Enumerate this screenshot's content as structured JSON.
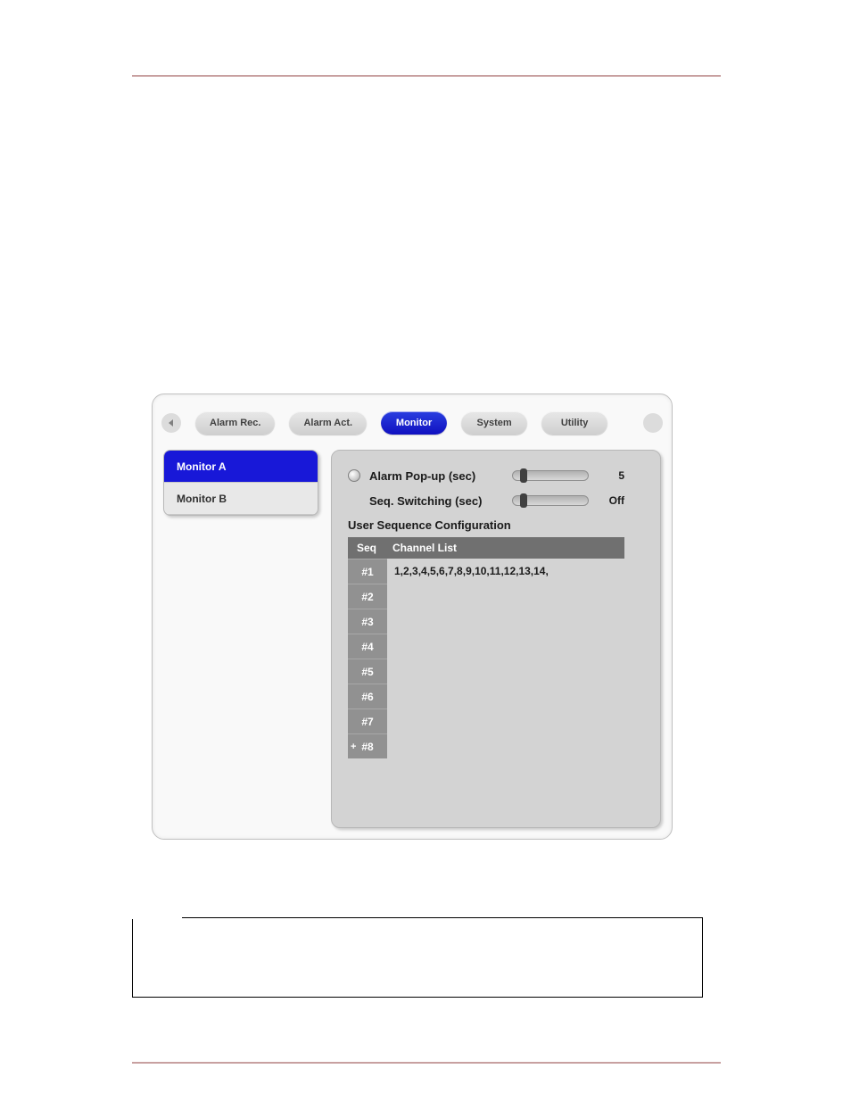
{
  "colors": {
    "rule": "#c8a0a0",
    "panel_bg": "#f9f9f9",
    "panel_border": "#c0c0c0",
    "tab_inactive_bg_top": "#e8e8e8",
    "tab_inactive_bg_bottom": "#cfcfcf",
    "tab_inactive_text": "#404040",
    "tab_active_bg_top": "#2a3fe0",
    "tab_active_bg_bottom": "#1010c0",
    "tab_active_text": "#ffffff",
    "sidebar_bg": "#e8e8e8",
    "sidebar_active_bg": "#1818d8",
    "content_bg": "#d3d3d3",
    "table_header_bg": "#707070",
    "table_numcol_bg": "#919191",
    "text": "#1a1a1a"
  },
  "tabs": [
    {
      "label": "Alarm Rec.",
      "active": false
    },
    {
      "label": "Alarm Act.",
      "active": false
    },
    {
      "label": "Monitor",
      "active": true
    },
    {
      "label": "System",
      "active": false
    },
    {
      "label": "Utility",
      "active": false
    }
  ],
  "sidebar": {
    "items": [
      {
        "label": "Monitor A",
        "active": true
      },
      {
        "label": "Monitor B",
        "active": false
      }
    ]
  },
  "settings": {
    "alarm_popup": {
      "label": "Alarm Pop-up (sec)",
      "value": "5",
      "thumb_pct": 10
    },
    "seq_switch": {
      "label": "Seq. Switching (sec)",
      "value": "Off",
      "thumb_pct": 10
    }
  },
  "seq_section_title": "User Sequence Configuration",
  "seq_table": {
    "col_a": "Seq",
    "col_b": "Channel List",
    "rows": [
      {
        "num": "#1",
        "list": "1,2,3,4,5,6,7,8,9,10,11,12,13,14,"
      },
      {
        "num": "#2",
        "list": ""
      },
      {
        "num": "#3",
        "list": ""
      },
      {
        "num": "#4",
        "list": ""
      },
      {
        "num": "#5",
        "list": ""
      },
      {
        "num": "#6",
        "list": ""
      },
      {
        "num": "#7",
        "list": ""
      },
      {
        "num": "#8",
        "list": "",
        "plus": true
      }
    ]
  }
}
